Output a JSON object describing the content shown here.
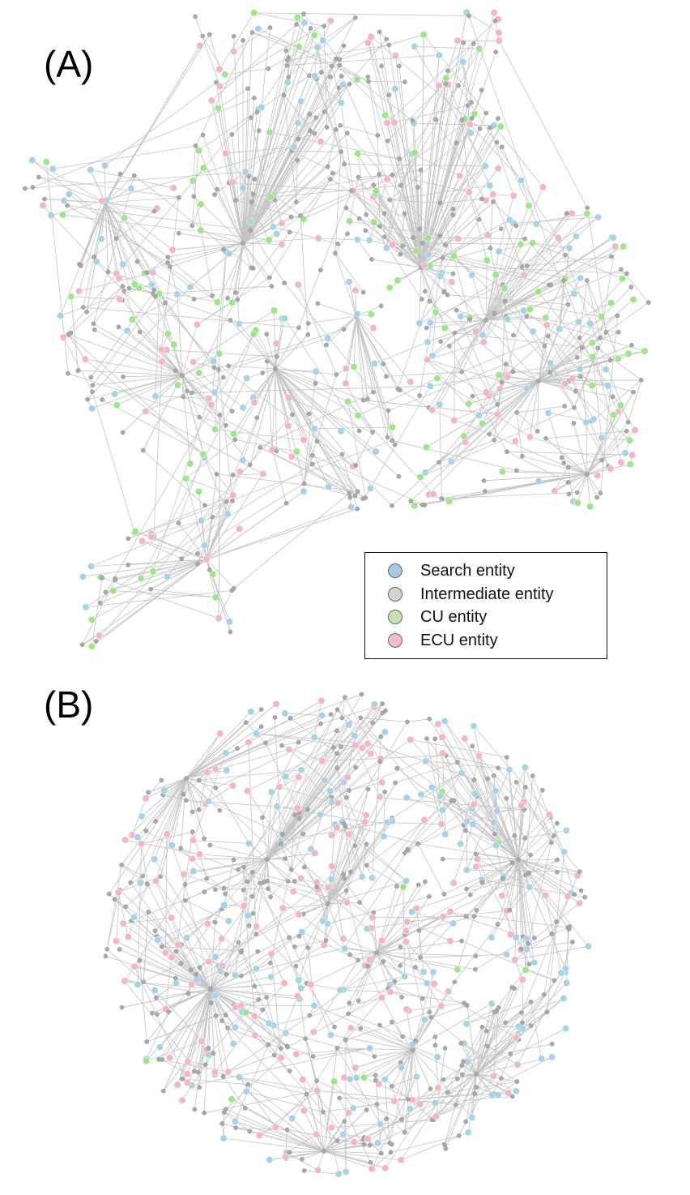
{
  "panels": {
    "a": {
      "label": "(A)"
    },
    "b": {
      "label": "(B)"
    }
  },
  "legend": {
    "items": [
      {
        "label": "Search entity",
        "color": "#a9c6e3"
      },
      {
        "label": "Intermediate entity",
        "color": "#d3d3d3"
      },
      {
        "label": "CU entity",
        "color": "#c6e2b2"
      },
      {
        "label": "ECU entity",
        "color": "#f2bccb"
      }
    ]
  },
  "node_colors": {
    "search": "#a8d3e6",
    "intermediate": "#a9a9a9",
    "cu": "#9ee68a",
    "ecu": "#f4b5c6",
    "edge": "#c4c4c4"
  }
}
